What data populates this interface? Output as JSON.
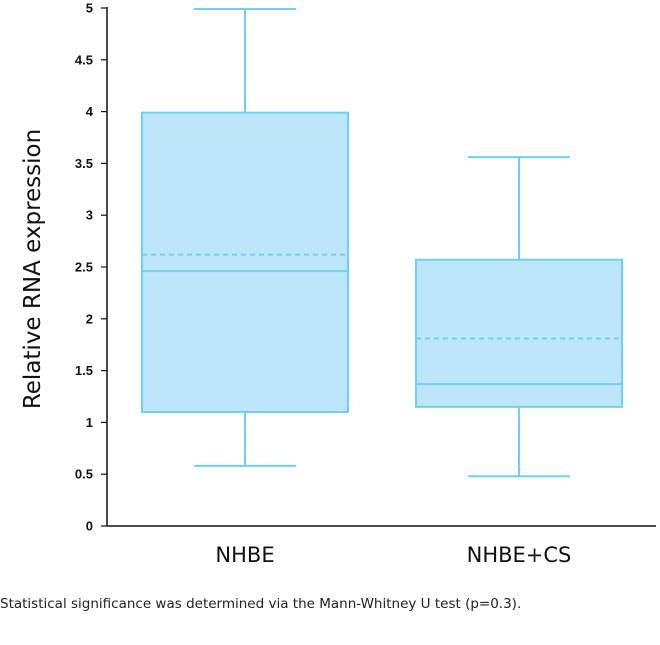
{
  "chart_data": {
    "type": "box",
    "ylabel": "Relative RNA expression",
    "ylim": [
      0,
      5
    ],
    "yticks": [
      {
        "v": 0,
        "label": "0"
      },
      {
        "v": 0.5,
        "label": "0.5"
      },
      {
        "v": 1,
        "label": "1"
      },
      {
        "v": 1.5,
        "label": "1.5"
      },
      {
        "v": 2,
        "label": "2"
      },
      {
        "v": 2.5,
        "label": "2.5"
      },
      {
        "v": 3,
        "label": "3"
      },
      {
        "v": 3.5,
        "label": "3.5"
      },
      {
        "v": 4,
        "label": "4"
      },
      {
        "v": 4.5,
        "label": "4.5"
      },
      {
        "v": 5,
        "label": "5"
      }
    ],
    "grid": false,
    "categories": [
      "NHBE",
      "NHBE+CS"
    ],
    "boxes": [
      {
        "category": "NHBE",
        "min": 0.58,
        "q1": 1.1,
        "median": 2.46,
        "mean": 2.62,
        "q3": 3.99,
        "max": 4.99
      },
      {
        "category": "NHBE+CS",
        "min": 0.48,
        "q1": 1.15,
        "median": 1.37,
        "mean": 1.81,
        "q3": 2.57,
        "max": 3.56
      }
    ],
    "colors": {
      "fill": "#bde6fa",
      "stroke": "#6fd0f5",
      "axis": "#111111"
    }
  },
  "caption": "Statistical significance was determined via the Mann-Whitney U test (p=0.3)."
}
